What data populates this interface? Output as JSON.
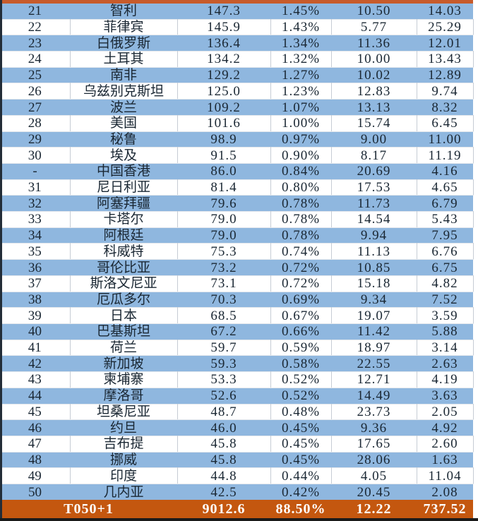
{
  "chart_data": {
    "type": "table",
    "rows": [
      {
        "rank": "21",
        "country": "智利",
        "value": "147.3",
        "share": "1.45%",
        "metric_a": "10.50",
        "metric_b": "14.03"
      },
      {
        "rank": "22",
        "country": "菲律宾",
        "value": "145.9",
        "share": "1.43%",
        "metric_a": "5.77",
        "metric_b": "25.29"
      },
      {
        "rank": "23",
        "country": "白俄罗斯",
        "value": "136.4",
        "share": "1.34%",
        "metric_a": "11.36",
        "metric_b": "12.01"
      },
      {
        "rank": "24",
        "country": "土耳其",
        "value": "134.2",
        "share": "1.32%",
        "metric_a": "10.00",
        "metric_b": "13.43"
      },
      {
        "rank": "25",
        "country": "南非",
        "value": "129.2",
        "share": "1.27%",
        "metric_a": "10.02",
        "metric_b": "12.89"
      },
      {
        "rank": "26",
        "country": "乌兹别克斯坦",
        "value": "125.0",
        "share": "1.23%",
        "metric_a": "12.83",
        "metric_b": "9.74"
      },
      {
        "rank": "27",
        "country": "波兰",
        "value": "109.2",
        "share": "1.07%",
        "metric_a": "13.13",
        "metric_b": "8.32"
      },
      {
        "rank": "28",
        "country": "美国",
        "value": "101.6",
        "share": "1.00%",
        "metric_a": "15.74",
        "metric_b": "6.45"
      },
      {
        "rank": "29",
        "country": "秘鲁",
        "value": "98.9",
        "share": "0.97%",
        "metric_a": "9.00",
        "metric_b": "11.00"
      },
      {
        "rank": "30",
        "country": "埃及",
        "value": "91.5",
        "share": "0.90%",
        "metric_a": "8.17",
        "metric_b": "11.19"
      },
      {
        "rank": "-",
        "country": "中国香港",
        "value": "86.0",
        "share": "0.84%",
        "metric_a": "20.69",
        "metric_b": "4.16"
      },
      {
        "rank": "31",
        "country": "尼日利亚",
        "value": "81.4",
        "share": "0.80%",
        "metric_a": "17.53",
        "metric_b": "4.65"
      },
      {
        "rank": "32",
        "country": "阿塞拜疆",
        "value": "79.6",
        "share": "0.78%",
        "metric_a": "11.73",
        "metric_b": "6.79"
      },
      {
        "rank": "33",
        "country": "卡塔尔",
        "value": "79.0",
        "share": "0.78%",
        "metric_a": "14.54",
        "metric_b": "5.43"
      },
      {
        "rank": "34",
        "country": "阿根廷",
        "value": "79.0",
        "share": "0.78%",
        "metric_a": "9.94",
        "metric_b": "7.95"
      },
      {
        "rank": "35",
        "country": "科威特",
        "value": "75.3",
        "share": "0.74%",
        "metric_a": "11.13",
        "metric_b": "6.76"
      },
      {
        "rank": "36",
        "country": "哥伦比亚",
        "value": "73.2",
        "share": "0.72%",
        "metric_a": "10.85",
        "metric_b": "6.75"
      },
      {
        "rank": "37",
        "country": "斯洛文尼亚",
        "value": "73.1",
        "share": "0.72%",
        "metric_a": "15.18",
        "metric_b": "4.82"
      },
      {
        "rank": "38",
        "country": "厄瓜多尔",
        "value": "70.3",
        "share": "0.69%",
        "metric_a": "9.34",
        "metric_b": "7.52"
      },
      {
        "rank": "39",
        "country": "日本",
        "value": "68.5",
        "share": "0.67%",
        "metric_a": "19.07",
        "metric_b": "3.59"
      },
      {
        "rank": "40",
        "country": "巴基斯坦",
        "value": "67.2",
        "share": "0.66%",
        "metric_a": "11.42",
        "metric_b": "5.88"
      },
      {
        "rank": "41",
        "country": "荷兰",
        "value": "59.7",
        "share": "0.59%",
        "metric_a": "18.97",
        "metric_b": "3.14"
      },
      {
        "rank": "42",
        "country": "新加坡",
        "value": "59.3",
        "share": "0.58%",
        "metric_a": "22.55",
        "metric_b": "2.63"
      },
      {
        "rank": "43",
        "country": "柬埔寨",
        "value": "53.3",
        "share": "0.52%",
        "metric_a": "12.71",
        "metric_b": "4.19"
      },
      {
        "rank": "44",
        "country": "摩洛哥",
        "value": "52.6",
        "share": "0.52%",
        "metric_a": "14.49",
        "metric_b": "3.63"
      },
      {
        "rank": "45",
        "country": "坦桑尼亚",
        "value": "48.7",
        "share": "0.48%",
        "metric_a": "23.73",
        "metric_b": "2.05"
      },
      {
        "rank": "46",
        "country": "约旦",
        "value": "46.0",
        "share": "0.45%",
        "metric_a": "9.36",
        "metric_b": "4.92"
      },
      {
        "rank": "47",
        "country": "吉布提",
        "value": "45.8",
        "share": "0.45%",
        "metric_a": "17.65",
        "metric_b": "2.60"
      },
      {
        "rank": "48",
        "country": "挪威",
        "value": "45.8",
        "share": "0.45%",
        "metric_a": "28.06",
        "metric_b": "1.63"
      },
      {
        "rank": "49",
        "country": "印度",
        "value": "44.8",
        "share": "0.44%",
        "metric_a": "4.05",
        "metric_b": "11.04"
      },
      {
        "rank": "50",
        "country": "几内亚",
        "value": "42.5",
        "share": "0.42%",
        "metric_a": "20.45",
        "metric_b": "2.08"
      }
    ],
    "total_row": {
      "label": "T050+1",
      "value": "9012.6",
      "share": "88.50%",
      "metric_a": "12.22",
      "metric_b": "737.52"
    }
  },
  "colors": {
    "row_blue": "#8FB7DF",
    "row_white": "#FFFFFF",
    "total_orange": "#C4570F",
    "top_strip_orange": "#C75B2B",
    "text_dark": "#1A2733",
    "total_text": "#FFFFFF",
    "cell_border": "#C6CCD4",
    "bottom_bar": "#1A1A1A",
    "left_border": "#232D38"
  }
}
